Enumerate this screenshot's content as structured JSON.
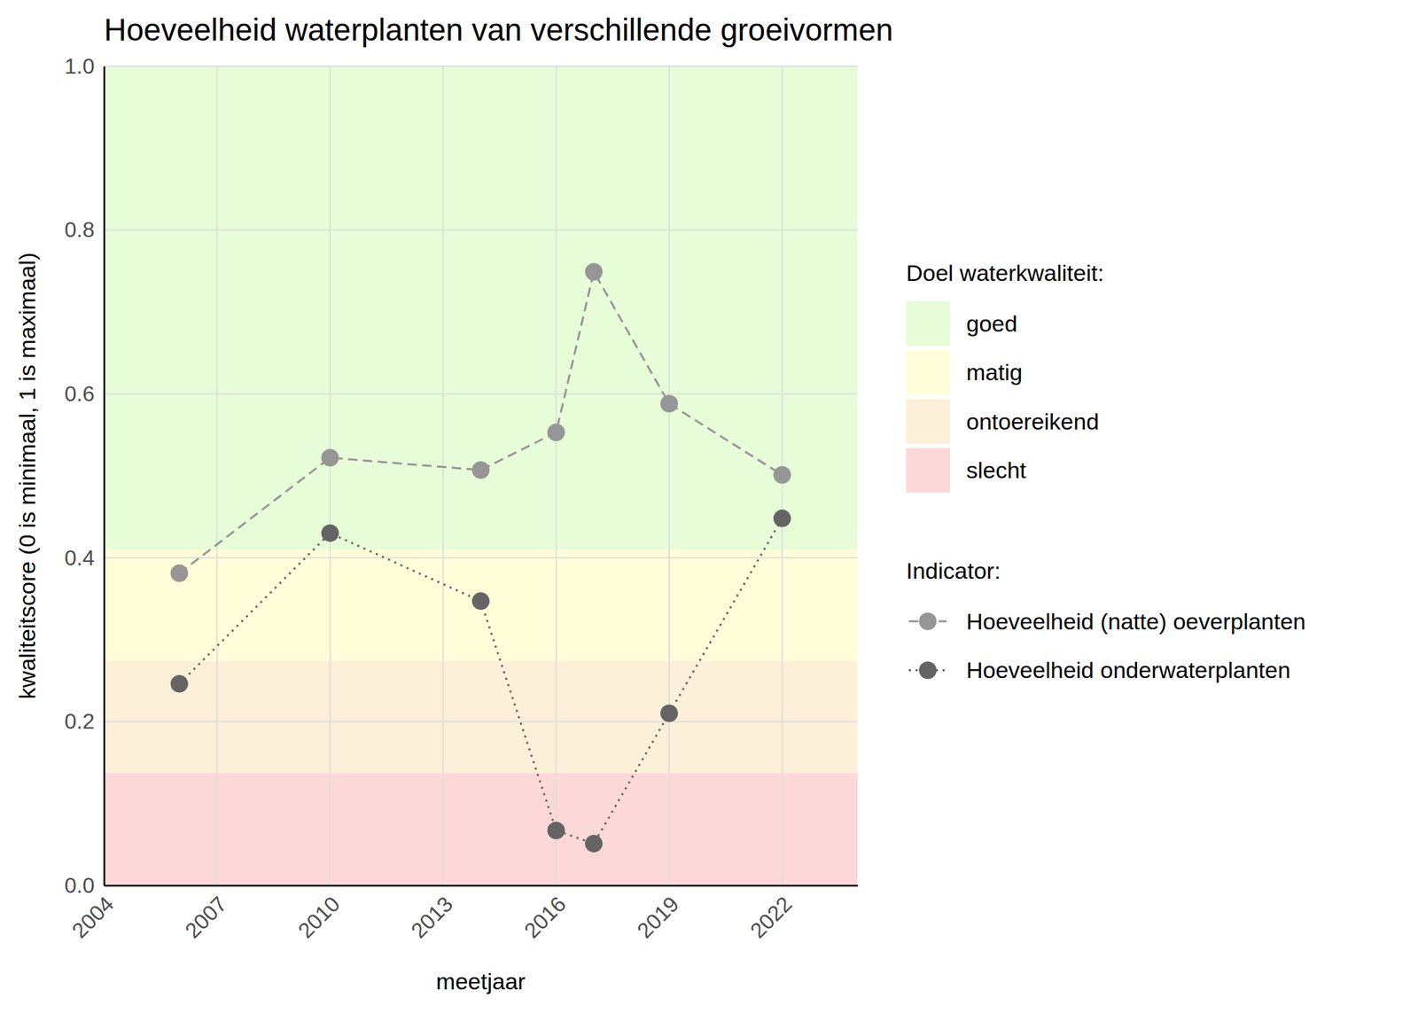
{
  "chart_data": {
    "type": "line",
    "title": "Hoeveelheid waterplanten van verschillende groeivormen",
    "x_label": "meetjaar",
    "y_label": "kwaliteitscore (0 is minimaal, 1 is maximaal)",
    "x": [
      2006,
      2010,
      2014,
      2016,
      2017,
      2019,
      2022
    ],
    "series": [
      {
        "name": "Hoeveelheid (natte) oeverplanten",
        "color": "#969696",
        "marker": "circle",
        "line_style": "dashed",
        "values": [
          0.381,
          0.522,
          0.507,
          0.553,
          0.749,
          0.588,
          0.501
        ]
      },
      {
        "name": "Hoeveelheid onderwaterplanten",
        "color": "#646464",
        "marker": "circle",
        "line_style": "dotted",
        "values": [
          0.246,
          0.43,
          0.347,
          0.067,
          0.051,
          0.21,
          0.448
        ]
      }
    ],
    "xlim": [
      2004,
      2024
    ],
    "xticks": [
      2004,
      2007,
      2010,
      2013,
      2016,
      2019,
      2022
    ],
    "ylim": [
      0,
      1
    ],
    "yticks": [
      {
        "value": 0,
        "label": "0.0"
      },
      0.2,
      0.4,
      0.6,
      0.8,
      {
        "value": 1,
        "label": "1.0"
      }
    ],
    "grid": true,
    "band_legend_title": "Doel waterkwaliteit:",
    "legend_title": "Indicator:",
    "bands": [
      {
        "name": "goed",
        "from": 0.41,
        "to": 1,
        "color": "#e6fdd8"
      },
      {
        "name": "matig",
        "from": 0.274,
        "to": 0.41,
        "color": "#fefdd8"
      },
      {
        "name": "ontoereikend",
        "from": 0.137,
        "to": 0.274,
        "color": "#fdf0d8"
      },
      {
        "name": "slecht",
        "from": 0,
        "to": 0.137,
        "color": "#fdd8d8"
      }
    ]
  }
}
